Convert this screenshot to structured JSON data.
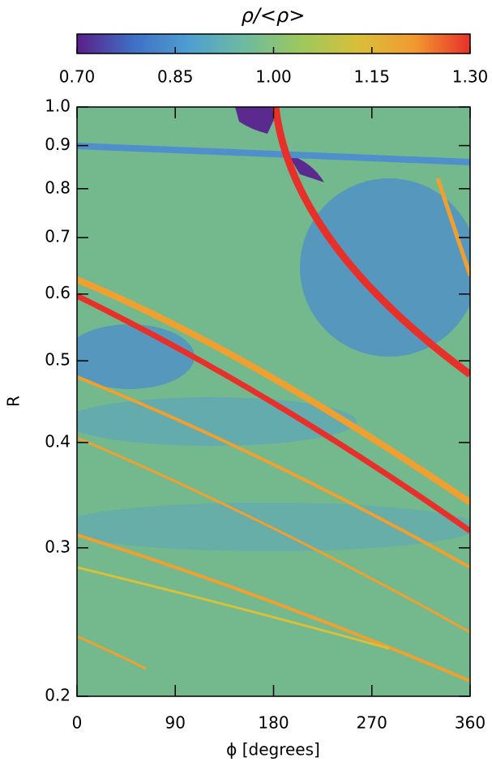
{
  "chart_data": {
    "type": "heatmap",
    "colorbar": {
      "label": "ρ/<ρ>",
      "colors": [
        "#5b1f8a",
        "#3f6fc6",
        "#4f9fd0",
        "#6fbba0",
        "#9dc85c",
        "#d9bf3a",
        "#f29a30",
        "#e8302a"
      ],
      "lim": [
        0.7,
        1.3
      ],
      "ticks": [
        {
          "value": 0.7,
          "label": "0.70"
        },
        0.85,
        {
          "value": 1,
          "label": "1.00"
        },
        1.15,
        {
          "value": 1.3,
          "label": "1.30"
        }
      ]
    },
    "xlabel": "ϕ [degrees]",
    "ylabel": "R",
    "xlim": [
      0,
      360
    ],
    "xticks": [
      0,
      90,
      180,
      270,
      360
    ],
    "ylim": [
      0.2,
      1
    ],
    "yscale": "log",
    "yticks": [
      0.2,
      0.3,
      0.4,
      0.5,
      0.6,
      0.7,
      0.8,
      0.9,
      {
        "value": 1,
        "label": "1.0"
      }
    ]
  }
}
